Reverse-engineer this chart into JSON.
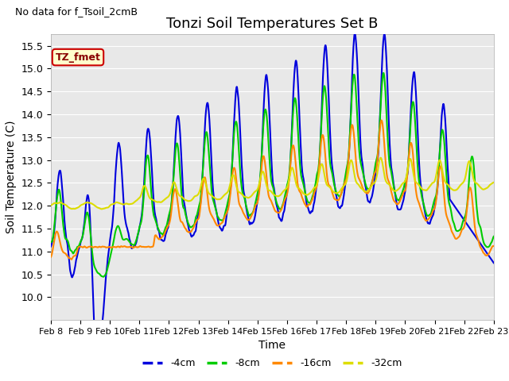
{
  "title": "Tonzi Soil Temperatures Set B",
  "xlabel": "Time",
  "ylabel": "Soil Temperature (C)",
  "no_data_text": "No data for f_Tsoil_2cmB",
  "legend_label": "TZ_fmet",
  "ylim": [
    9.5,
    15.75
  ],
  "yticks": [
    10.0,
    10.5,
    11.0,
    11.5,
    12.0,
    12.5,
    13.0,
    13.5,
    14.0,
    14.5,
    15.0,
    15.5
  ],
  "x_tick_labels": [
    "Feb 8",
    "Feb 9",
    "Feb 10",
    "Feb 11",
    "Feb 12",
    "Feb 13",
    "Feb 14",
    "Feb 15",
    "Feb 16",
    "Feb 17",
    "Feb 18",
    "Feb 19",
    "Feb 20",
    "Feb 21",
    "Feb 22",
    "Feb 23"
  ],
  "n_days": 15,
  "color_4cm": "#0000dd",
  "color_8cm": "#00cc00",
  "color_16cm": "#ff8800",
  "color_32cm": "#dddd00",
  "bg_color": "#e8e8e8",
  "legend_bg": "#ffffcc",
  "legend_border": "#cc0000",
  "legend_text_color": "#880000",
  "title_fontsize": 13,
  "axis_label_fontsize": 10,
  "tick_fontsize": 9,
  "line_width": 1.5
}
